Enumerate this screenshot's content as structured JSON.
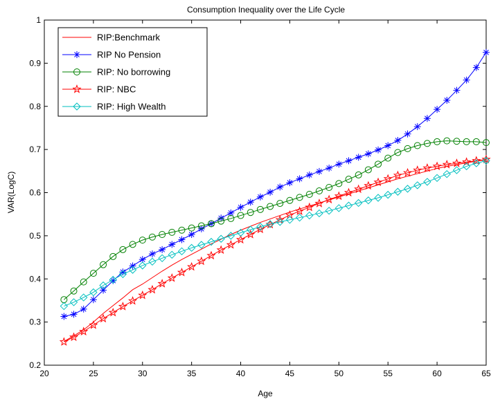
{
  "chart_data": {
    "type": "line",
    "title": "Consumption Inequality over the Life Cycle",
    "xlabel": "Age",
    "ylabel": "VAR(LogC)",
    "xlim": [
      20,
      65
    ],
    "ylim": [
      0.2,
      1.0
    ],
    "xticks": [
      20,
      25,
      30,
      35,
      40,
      45,
      50,
      55,
      60,
      65
    ],
    "yticks": [
      0.2,
      0.3,
      0.4,
      0.5,
      0.6,
      0.7,
      0.8,
      0.9,
      1.0
    ],
    "xtick_labels": [
      "20",
      "25",
      "30",
      "35",
      "40",
      "45",
      "50",
      "55",
      "60",
      "65"
    ],
    "ytick_labels": [
      "0.2",
      "0.3",
      "0.4",
      "0.5",
      "0.6",
      "0.7",
      "0.8",
      "0.9",
      "1"
    ],
    "grid": false,
    "legend_position": "top-left",
    "x": [
      22,
      23,
      24,
      25,
      26,
      27,
      28,
      29,
      30,
      31,
      32,
      33,
      34,
      35,
      36,
      37,
      38,
      39,
      40,
      41,
      42,
      43,
      44,
      45,
      46,
      47,
      48,
      49,
      50,
      51,
      52,
      53,
      54,
      55,
      56,
      57,
      58,
      59,
      60,
      61,
      62,
      63,
      64,
      65
    ],
    "series": [
      {
        "name": "RIP:Benchmark",
        "color": "#ff0000",
        "marker": "none",
        "values": [
          0.255,
          0.268,
          0.282,
          0.3,
          0.32,
          0.338,
          0.356,
          0.375,
          0.388,
          0.403,
          0.418,
          0.432,
          0.445,
          0.457,
          0.469,
          0.481,
          0.492,
          0.503,
          0.513,
          0.522,
          0.531,
          0.539,
          0.547,
          0.555,
          0.562,
          0.569,
          0.576,
          0.583,
          0.59,
          0.597,
          0.604,
          0.611,
          0.618,
          0.625,
          0.632,
          0.638,
          0.644,
          0.65,
          0.656,
          0.661,
          0.665,
          0.669,
          0.673,
          0.676
        ]
      },
      {
        "name": "RIP No Pension",
        "color": "#0000ff",
        "marker": "star",
        "values": [
          0.313,
          0.318,
          0.33,
          0.352,
          0.374,
          0.396,
          0.416,
          0.43,
          0.445,
          0.458,
          0.468,
          0.48,
          0.491,
          0.503,
          0.516,
          0.528,
          0.541,
          0.553,
          0.566,
          0.578,
          0.59,
          0.601,
          0.613,
          0.623,
          0.632,
          0.641,
          0.649,
          0.657,
          0.666,
          0.674,
          0.682,
          0.69,
          0.699,
          0.709,
          0.721,
          0.736,
          0.753,
          0.772,
          0.793,
          0.814,
          0.837,
          0.861,
          0.89,
          0.925
        ]
      },
      {
        "name": "RIP: No borrowing",
        "color": "#008000",
        "marker": "circle",
        "values": [
          0.352,
          0.372,
          0.393,
          0.413,
          0.433,
          0.452,
          0.468,
          0.48,
          0.49,
          0.497,
          0.503,
          0.508,
          0.513,
          0.518,
          0.523,
          0.528,
          0.534,
          0.54,
          0.547,
          0.554,
          0.561,
          0.568,
          0.575,
          0.582,
          0.589,
          0.596,
          0.604,
          0.612,
          0.621,
          0.631,
          0.641,
          0.653,
          0.666,
          0.68,
          0.693,
          0.702,
          0.709,
          0.714,
          0.718,
          0.72,
          0.719,
          0.718,
          0.718,
          0.716
        ]
      },
      {
        "name": "RIP: NBC",
        "color": "#ff0000",
        "marker": "pentagram",
        "values": [
          0.254,
          0.265,
          0.278,
          0.293,
          0.308,
          0.322,
          0.336,
          0.349,
          0.362,
          0.375,
          0.389,
          0.402,
          0.415,
          0.428,
          0.441,
          0.454,
          0.467,
          0.479,
          0.491,
          0.503,
          0.515,
          0.526,
          0.537,
          0.548,
          0.557,
          0.566,
          0.575,
          0.584,
          0.592,
          0.6,
          0.608,
          0.616,
          0.624,
          0.632,
          0.64,
          0.646,
          0.652,
          0.657,
          0.661,
          0.665,
          0.668,
          0.671,
          0.674,
          0.677
        ]
      },
      {
        "name": "RIP: High Wealth",
        "color": "#00bfbf",
        "marker": "diamond",
        "values": [
          0.337,
          0.346,
          0.357,
          0.369,
          0.385,
          0.398,
          0.411,
          0.421,
          0.431,
          0.44,
          0.448,
          0.456,
          0.464,
          0.472,
          0.479,
          0.486,
          0.493,
          0.5,
          0.507,
          0.514,
          0.521,
          0.527,
          0.532,
          0.537,
          0.542,
          0.547,
          0.552,
          0.558,
          0.564,
          0.57,
          0.576,
          0.582,
          0.588,
          0.595,
          0.602,
          0.609,
          0.617,
          0.625,
          0.634,
          0.643,
          0.652,
          0.661,
          0.668,
          0.674
        ]
      }
    ]
  }
}
